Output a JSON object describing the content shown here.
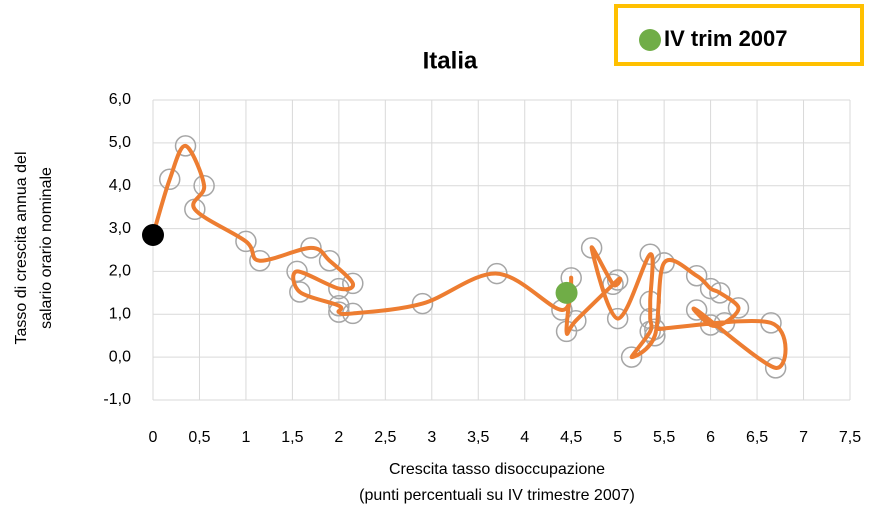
{
  "chart_data": {
    "type": "scatter",
    "title": "Italia",
    "xlabel": [
      "Crescita tasso disoccupazione",
      "(punti percentuali su IV trimestre 2007)"
    ],
    "ylabel": [
      "Tasso di crescita annua del",
      "salario orario nominale"
    ],
    "xlim": [
      0,
      7.5
    ],
    "ylim": [
      -1,
      6
    ],
    "xticks": [
      0,
      {
        "value": 0.5,
        "label": "0,5"
      },
      1,
      {
        "value": 1.5,
        "label": "1,5"
      },
      2,
      {
        "value": 2.5,
        "label": "2,5"
      },
      3,
      {
        "value": 3.5,
        "label": "3,5"
      },
      4,
      {
        "value": 4.5,
        "label": "4,5"
      },
      5,
      {
        "value": 5.5,
        "label": "5,5"
      },
      6,
      {
        "value": 6.5,
        "label": "6,5"
      },
      7,
      {
        "value": 7.5,
        "label": "7,5"
      }
    ],
    "yticks": [
      {
        "value": -1,
        "label": "-1,0"
      },
      {
        "value": 0,
        "label": "0,0"
      },
      {
        "value": 1,
        "label": "1,0"
      },
      {
        "value": 2,
        "label": "2,0"
      },
      {
        "value": 3,
        "label": "3,0"
      },
      {
        "value": 4,
        "label": "4,0"
      },
      {
        "value": 5,
        "label": "5,0"
      },
      {
        "value": 6,
        "label": "6,0"
      }
    ],
    "grid": true,
    "legend": "top-right",
    "series": [
      {
        "color": "#ed7d31",
        "marker_color": "#a6a6a6",
        "x": [
          0.18,
          0.35,
          0.55,
          0.45,
          1.0,
          1.15,
          1.7,
          1.9,
          2.15,
          2.0,
          1.55,
          1.58,
          2.0,
          2.0,
          2.15,
          2.9,
          3.7,
          4.4,
          4.5,
          4.45,
          4.55,
          5.0,
          4.95,
          4.72,
          5.0,
          5.35,
          5.35,
          5.35,
          5.35,
          5.15,
          5.4,
          5.5,
          5.85,
          6.0,
          6.1,
          6.3,
          6.15,
          6.0,
          5.85,
          6.7,
          6.65,
          5.4
        ],
        "values": [
          4.15,
          4.93,
          4.0,
          3.45,
          2.7,
          2.25,
          2.55,
          2.25,
          1.72,
          1.6,
          2.0,
          1.52,
          1.2,
          1.05,
          1.02,
          1.25,
          1.95,
          1.1,
          1.85,
          0.6,
          0.85,
          1.8,
          1.7,
          2.55,
          0.9,
          2.4,
          1.3,
          0.9,
          0.6,
          0.0,
          0.5,
          2.2,
          1.9,
          1.6,
          1.5,
          1.15,
          0.8,
          0.75,
          1.1,
          -0.25,
          0.8,
          0.65
        ]
      },
      {
        "color": "#000000",
        "x": [
          0
        ],
        "values": [
          2.85
        ]
      },
      {
        "name": "IV trim 2007",
        "color": "#70ad47",
        "x": [
          4.45
        ],
        "values": [
          1.5
        ]
      }
    ]
  }
}
